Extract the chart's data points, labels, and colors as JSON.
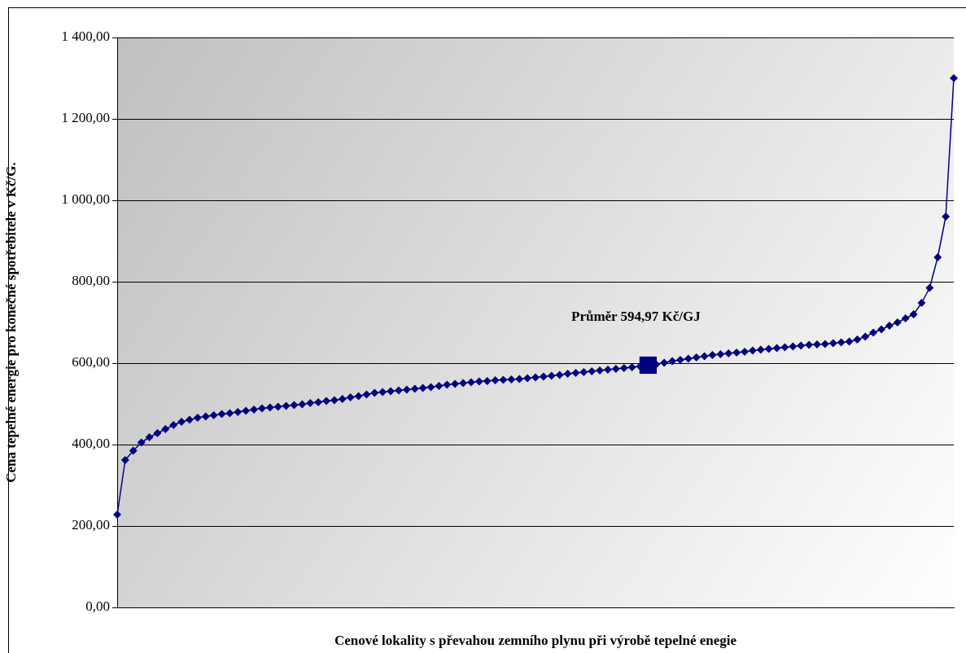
{
  "chart_data": {
    "type": "line",
    "xlabel": "Cenové lokality s převahou zemního plynu při výrobě tepelné enegie",
    "ylabel": "Cena tepelné energie pro konečné spotřebitele v Kč/G.",
    "categories": [
      null,
      null,
      null,
      null,
      null,
      null,
      null,
      null,
      null,
      null,
      null,
      null,
      null,
      null,
      null,
      null,
      null,
      null,
      null,
      null,
      null,
      null,
      null,
      null,
      null,
      null,
      null,
      null,
      null,
      null,
      null,
      null,
      null,
      null,
      null,
      null,
      null,
      null,
      null,
      null,
      null,
      null,
      null,
      null,
      null,
      null,
      null,
      null,
      null,
      null,
      null,
      null,
      null,
      null,
      null,
      null,
      null,
      null,
      null,
      null,
      null,
      null,
      null,
      null,
      null,
      null,
      null,
      null,
      null,
      null,
      null,
      null,
      null,
      null,
      null,
      null,
      null,
      null,
      null,
      null,
      null,
      null,
      null,
      null,
      null,
      null,
      null,
      null,
      null,
      null,
      null,
      null,
      null,
      null,
      null,
      null,
      null,
      null,
      null,
      null,
      null,
      null,
      null,
      null,
      null
    ],
    "series": [
      {
        "color": "#000080",
        "marker": "diamond",
        "values": [
          228,
          362,
          385,
          405,
          418,
          428,
          438,
          448,
          456,
          461,
          466,
          469,
          472,
          475,
          477,
          480,
          483,
          486,
          489,
          491,
          493,
          495,
          497,
          499,
          502,
          504,
          507,
          509,
          512,
          516,
          519,
          523,
          527,
          529,
          531,
          533,
          535,
          537,
          539,
          541,
          544,
          547,
          549,
          551,
          553,
          555,
          556,
          558,
          559,
          560,
          561,
          563,
          565,
          567,
          569,
          571,
          574,
          576,
          578,
          580,
          582,
          584,
          586,
          588,
          590,
          592,
          594,
          597,
          601,
          605,
          608,
          611,
          614,
          617,
          620,
          622,
          624,
          626,
          628,
          631,
          633,
          635,
          637,
          639,
          641,
          643,
          645,
          646,
          647,
          649,
          651,
          653,
          658,
          665,
          675,
          683,
          692,
          700,
          710,
          720,
          748,
          785,
          860,
          960,
          1300
        ]
      },
      {
        "type": "scatter",
        "color": "#000080",
        "marker": "square",
        "values": [
          null,
          null,
          null,
          null,
          null,
          null,
          null,
          null,
          null,
          null,
          null,
          null,
          null,
          null,
          null,
          null,
          null,
          null,
          null,
          null,
          null,
          null,
          null,
          null,
          null,
          null,
          null,
          null,
          null,
          null,
          null,
          null,
          null,
          null,
          null,
          null,
          null,
          null,
          null,
          null,
          null,
          null,
          null,
          null,
          null,
          null,
          null,
          null,
          null,
          null,
          null,
          null,
          null,
          null,
          null,
          null,
          null,
          null,
          null,
          null,
          null,
          null,
          null,
          null,
          null,
          null,
          595,
          null,
          null,
          null,
          null,
          null,
          null,
          null,
          null,
          null,
          null,
          null,
          null,
          null,
          null,
          null,
          null,
          null,
          null,
          null,
          null,
          null,
          null,
          null,
          null,
          null,
          null,
          null,
          null,
          null,
          null,
          null,
          null,
          null,
          null,
          null,
          null,
          null,
          null
        ]
      }
    ],
    "ylim": [
      0,
      1400
    ],
    "yticks": [
      {
        "value": 0,
        "label": "0,00"
      },
      {
        "value": 200,
        "label": "200,00"
      },
      {
        "value": 400,
        "label": "400,00"
      },
      {
        "value": 600,
        "label": "600,00"
      },
      {
        "value": 800,
        "label": "800,00"
      },
      {
        "value": 1000,
        "label": "1 000,00"
      },
      {
        "value": 1200,
        "label": "1 200,00"
      },
      {
        "value": 1400,
        "label": "1 400,00"
      }
    ],
    "grid": "y",
    "legend": false,
    "annotations": [
      "Průměr 594,97 Kč/GJ"
    ]
  }
}
